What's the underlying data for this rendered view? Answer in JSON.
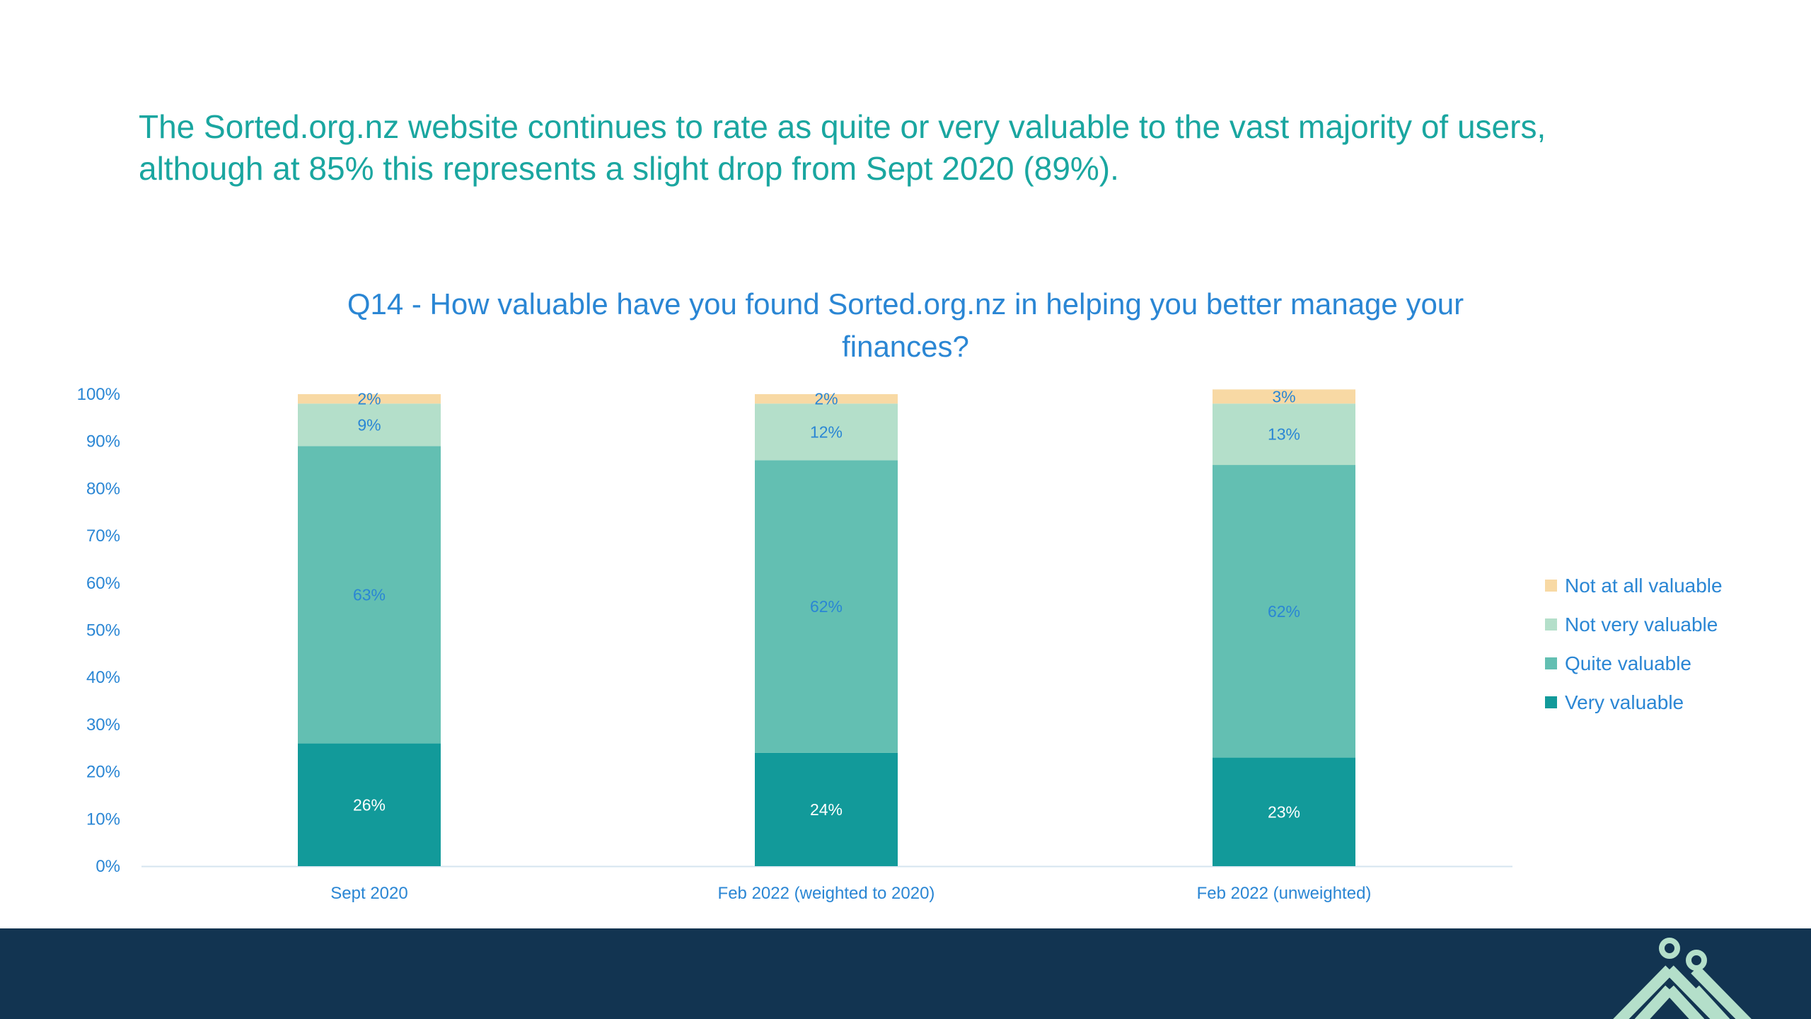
{
  "headline": {
    "line1": "The Sorted.org.nz website continues to rate as quite or very valuable to the vast majority of users,",
    "line2": "although at 85% this represents a slight drop from Sept 2020 (89%)."
  },
  "chart_data": {
    "type": "bar",
    "stacked": true,
    "title_line1": "Q14 - How valuable have you found Sorted.org.nz in helping you better manage your",
    "title_line2": "finances?",
    "categories": [
      "Sept 2020",
      "Feb 2022 (weighted to 2020)",
      "Feb 2022 (unweighted)"
    ],
    "series": [
      {
        "name": "Very valuable",
        "values": [
          26,
          24,
          23
        ],
        "color": "#129a9a",
        "label_color": "#ffffff"
      },
      {
        "name": "Quite valuable",
        "values": [
          63,
          62,
          62
        ],
        "color": "#63bfb2",
        "label_color": "#2a86d4"
      },
      {
        "name": "Not very valuable",
        "values": [
          9,
          12,
          13
        ],
        "color": "#b4dfca",
        "label_color": "#2a86d4"
      },
      {
        "name": "Not at all valuable",
        "values": [
          2,
          2,
          3
        ],
        "color": "#f8d9a4",
        "label_color": "#2a86d4"
      }
    ],
    "data_labels": [
      [
        "26%",
        "24%",
        "23%"
      ],
      [
        "63%",
        "62%",
        "62%"
      ],
      [
        "9%",
        "12%",
        "13%"
      ],
      [
        "2%",
        "2%",
        "3%"
      ]
    ],
    "yticks": [
      "0%",
      "10%",
      "20%",
      "30%",
      "40%",
      "50%",
      "60%",
      "70%",
      "80%",
      "90%",
      "100%"
    ],
    "ylim": [
      0,
      100
    ],
    "xlabel": "",
    "ylabel": "",
    "legend_position": "right",
    "legend_order": [
      "Not at all valuable",
      "Not very valuable",
      "Quite valuable",
      "Very valuable"
    ],
    "grid": false
  },
  "colors": {
    "headline": "#1aa6a0",
    "axis_text": "#2a86d4",
    "footer": "#123451",
    "logo": "#b4dfca"
  }
}
